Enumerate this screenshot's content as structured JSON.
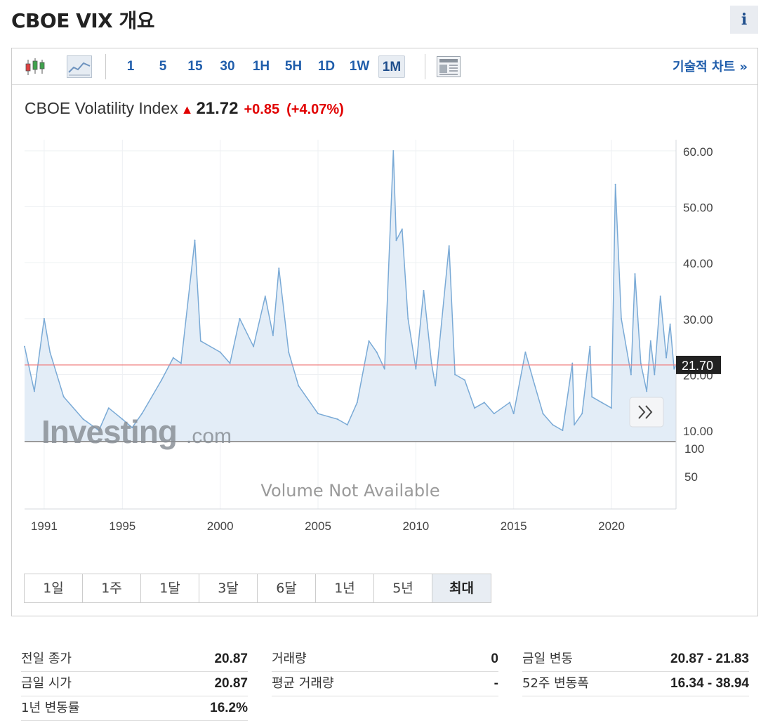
{
  "header": {
    "title": "CBOE VIX 개요",
    "info_label": "i"
  },
  "toolbar": {
    "intervals": [
      "1",
      "5",
      "15",
      "30",
      "1H",
      "5H",
      "1D",
      "1W",
      "1M"
    ],
    "active_interval": "1M",
    "tech_chart_link": "기술적 차트 »"
  },
  "quote": {
    "name": "CBOE Volatility Index",
    "last": "21.72",
    "change": "+0.85",
    "change_pct": "(+4.07%)"
  },
  "watermark": "Investing",
  "watermark_suffix": ".com",
  "volume_note": "Volume Not Available",
  "scroll_icon": "double-chevron-right-icon",
  "range_buttons": [
    "1일",
    "1주",
    "1달",
    "3달",
    "6달",
    "1년",
    "5년",
    "최대"
  ],
  "active_range": "최대",
  "stats": {
    "col1": [
      {
        "label": "전일 종가",
        "value": "20.87"
      },
      {
        "label": "금일 시가",
        "value": "20.87"
      },
      {
        "label": "1년 변동률",
        "value": "16.2%"
      }
    ],
    "col2": [
      {
        "label": "거래량",
        "value": "0"
      },
      {
        "label": "평균 거래량",
        "value": "-"
      }
    ],
    "col3": [
      {
        "label": "금일 변동",
        "value": "20.87 - 21.83"
      },
      {
        "label": "52주 변동폭",
        "value": "16.34 - 38.94"
      }
    ]
  },
  "colors": {
    "line": "#7aaad6",
    "fill": "#e3edf7",
    "ref_line": "#f08080",
    "accent": "#1f5dab",
    "up": "#e10000"
  },
  "chart_data": {
    "type": "area",
    "title": "CBOE Volatility Index",
    "x": [
      1990.0,
      1990.5,
      1991.0,
      1991.3,
      1992.0,
      1993.0,
      1993.8,
      1994.3,
      1995.0,
      1995.5,
      1996.0,
      1997.0,
      1997.6,
      1998.0,
      1998.7,
      1999.0,
      2000.0,
      2000.5,
      2001.0,
      2001.7,
      2002.3,
      2002.7,
      2003.0,
      2003.5,
      2004.0,
      2005.0,
      2006.0,
      2006.5,
      2007.0,
      2007.6,
      2008.0,
      2008.4,
      2008.85,
      2009.0,
      2009.3,
      2009.6,
      2010.0,
      2010.4,
      2010.8,
      2011.0,
      2011.7,
      2012.0,
      2012.5,
      2013.0,
      2013.5,
      2014.0,
      2014.8,
      2015.0,
      2015.6,
      2016.0,
      2016.5,
      2017.0,
      2017.5,
      2018.0,
      2018.1,
      2018.5,
      2018.9,
      2019.0,
      2019.5,
      2020.0,
      2020.2,
      2020.5,
      2021.0,
      2021.2,
      2021.5,
      2021.8,
      2022.0,
      2022.2,
      2022.5,
      2022.8,
      2023.0,
      2023.2,
      2023.3
    ],
    "values": [
      25,
      17,
      30,
      24,
      16,
      12,
      10,
      14,
      12,
      10.5,
      13,
      19,
      23,
      22,
      44,
      26,
      24,
      22,
      30,
      25,
      34,
      27,
      39,
      24,
      18,
      13,
      12,
      11,
      15,
      26,
      24,
      21,
      60,
      44,
      46,
      30,
      21,
      35,
      22,
      18,
      43,
      20,
      19,
      14,
      15,
      13,
      15,
      13,
      24,
      19,
      13,
      11,
      10,
      22,
      11,
      13,
      25,
      16,
      15,
      14,
      54,
      30,
      20,
      38,
      22,
      17,
      26,
      20,
      34,
      23,
      29,
      21,
      21.7
    ],
    "xlim": [
      1990.0,
      2023.3
    ],
    "ylim": [
      8,
      62
    ],
    "x_ticks": [
      "1991",
      "1995",
      "2000",
      "2005",
      "2010",
      "2015",
      "2020"
    ],
    "y_ticks": [
      "60.00",
      "50.00",
      "40.00",
      "30.00",
      "20.00",
      "10.00"
    ],
    "last_label": "21.70",
    "volume_ticks": [
      "100",
      "50"
    ],
    "grid": true
  }
}
